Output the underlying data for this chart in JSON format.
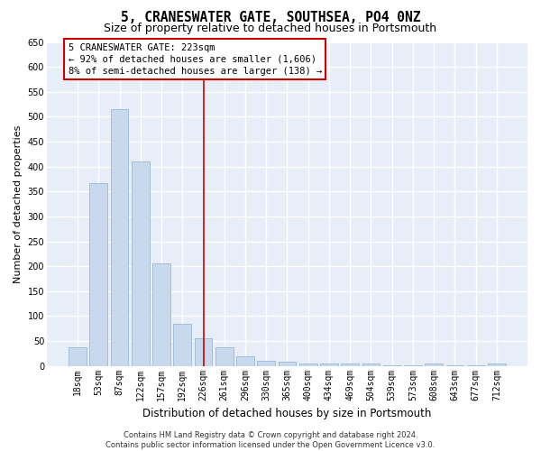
{
  "title": "5, CRANESWATER GATE, SOUTHSEA, PO4 0NZ",
  "subtitle": "Size of property relative to detached houses in Portsmouth",
  "xlabel": "Distribution of detached houses by size in Portsmouth",
  "ylabel": "Number of detached properties",
  "categories": [
    "18sqm",
    "53sqm",
    "87sqm",
    "122sqm",
    "157sqm",
    "192sqm",
    "226sqm",
    "261sqm",
    "296sqm",
    "330sqm",
    "365sqm",
    "400sqm",
    "434sqm",
    "469sqm",
    "504sqm",
    "539sqm",
    "573sqm",
    "608sqm",
    "643sqm",
    "677sqm",
    "712sqm"
  ],
  "values": [
    37,
    367,
    515,
    411,
    205,
    85,
    55,
    37,
    20,
    10,
    8,
    5,
    5,
    5,
    5,
    2,
    2,
    5,
    2,
    2,
    5
  ],
  "bar_color": "#c8d8ed",
  "bar_edge_color": "#8ab0d0",
  "highlight_bin_index": 6,
  "vline_color": "#cc0000",
  "annotation_text": "5 CRANESWATER GATE: 223sqm\n← 92% of detached houses are smaller (1,606)\n8% of semi-detached houses are larger (138) →",
  "annotation_box_facecolor": "#ffffff",
  "annotation_box_edgecolor": "#cc0000",
  "ylim": [
    0,
    650
  ],
  "yticks": [
    0,
    50,
    100,
    150,
    200,
    250,
    300,
    350,
    400,
    450,
    500,
    550,
    600,
    650
  ],
  "bg_color": "#e8eef8",
  "grid_color": "#ffffff",
  "footer1": "Contains HM Land Registry data © Crown copyright and database right 2024.",
  "footer2": "Contains public sector information licensed under the Open Government Licence v3.0.",
  "title_fontsize": 10.5,
  "subtitle_fontsize": 9,
  "tick_fontsize": 7,
  "ylabel_fontsize": 8,
  "xlabel_fontsize": 8.5,
  "ann_fontsize": 7.5,
  "footer_fontsize": 6
}
